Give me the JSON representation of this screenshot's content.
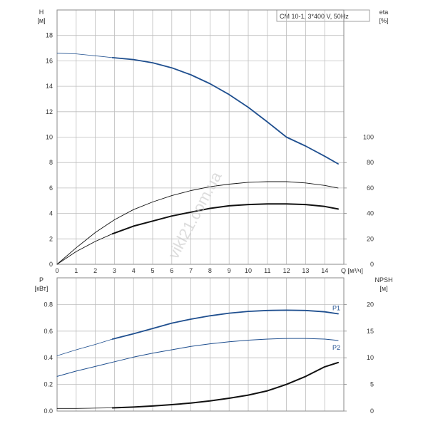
{
  "title_box": "CM 10-1, 3*400 V, 50Hz",
  "watermark": "vikl21.com.ua",
  "colors": {
    "blue": "#1f4f8f",
    "black": "#111111",
    "grid": "#bdbdbd"
  },
  "chart_data": [
    {
      "type": "line",
      "panel": "top",
      "x_tick_labels": [
        "0",
        "1",
        "2",
        "3",
        "4",
        "5",
        "6",
        "7",
        "8",
        "9",
        "10",
        "11",
        "12",
        "13",
        "14"
      ],
      "xlim": [
        0,
        15
      ],
      "x_unit_label": "Q [м³/ч]",
      "left_axis": {
        "label": "H",
        "unit": "[м]",
        "ylim": [
          0,
          20
        ],
        "tick_labels": [
          "0",
          "2",
          "4",
          "6",
          "8",
          "10",
          "12",
          "14",
          "16",
          "18"
        ]
      },
      "right_axis": {
        "label": "eta",
        "unit": "[%]",
        "ylim": [
          0,
          200
        ],
        "tick_labels": [
          "0",
          "20",
          "40",
          "60",
          "80",
          "100"
        ]
      },
      "grid": true,
      "series": [
        {
          "key": "H",
          "axis": "left",
          "color": "blue",
          "width": 1.8,
          "x": [
            2.9,
            4,
            5,
            6,
            7,
            8,
            9,
            10,
            11,
            12,
            13,
            14,
            14.7
          ],
          "y": [
            16.25,
            16.1,
            15.85,
            15.45,
            14.9,
            14.2,
            13.35,
            12.35,
            11.2,
            10.0,
            9.3,
            8.5,
            7.9
          ]
        },
        {
          "key": "H_ext",
          "axis": "left",
          "color": "blue",
          "width": 0.8,
          "x": [
            0,
            1,
            2,
            2.9
          ],
          "y": [
            16.6,
            16.55,
            16.4,
            16.25
          ]
        },
        {
          "key": "eta_upper",
          "axis": "right",
          "color": "black",
          "width": 0.9,
          "x": [
            0,
            1,
            2,
            3,
            4,
            5,
            6,
            7,
            8,
            9,
            10,
            11,
            12,
            13,
            14,
            14.7
          ],
          "y": [
            0,
            13,
            25,
            35,
            43,
            49,
            54,
            58,
            61,
            63,
            64.5,
            65,
            65,
            64,
            62,
            60
          ]
        },
        {
          "key": "eta_lower",
          "axis": "right",
          "color": "black",
          "width": 0.9,
          "x": [
            0,
            1,
            2,
            2.9
          ],
          "y": [
            0,
            10,
            18,
            24
          ]
        },
        {
          "key": "eta",
          "axis": "right",
          "color": "black",
          "width": 2.0,
          "x": [
            2.9,
            4,
            5,
            6,
            7,
            8,
            9,
            10,
            11,
            12,
            13,
            14,
            14.7
          ],
          "y": [
            24,
            30,
            34,
            38,
            41,
            44,
            46,
            47,
            47.5,
            47.5,
            47,
            45.5,
            43.5
          ]
        }
      ]
    },
    {
      "type": "line",
      "panel": "bottom",
      "xlim": [
        0,
        15
      ],
      "left_axis": {
        "label": "P",
        "unit": "[кВт]",
        "ylim": [
          0,
          1.0
        ],
        "tick_labels": [
          "0.0",
          "0.2",
          "0.4",
          "0.6",
          "0.8"
        ]
      },
      "right_axis": {
        "label": "NPSH",
        "unit": "[м]",
        "ylim": [
          0,
          25
        ],
        "tick_labels": [
          "0",
          "5",
          "10",
          "15",
          "20"
        ]
      },
      "grid": true,
      "series": [
        {
          "key": "P1",
          "name": "P1",
          "axis": "left",
          "color": "blue",
          "width": 1.8,
          "x": [
            2.9,
            4,
            5,
            6,
            7,
            8,
            9,
            10,
            11,
            12,
            13,
            14,
            14.7
          ],
          "y": [
            0.54,
            0.58,
            0.62,
            0.66,
            0.69,
            0.715,
            0.735,
            0.748,
            0.755,
            0.757,
            0.755,
            0.745,
            0.73
          ]
        },
        {
          "key": "P1_ext",
          "axis": "left",
          "color": "blue",
          "width": 0.8,
          "x": [
            0,
            1,
            2,
            2.9
          ],
          "y": [
            0.415,
            0.46,
            0.5,
            0.54
          ]
        },
        {
          "key": "P2",
          "name": "P2",
          "axis": "left",
          "color": "blue",
          "width": 1.0,
          "x": [
            0,
            1,
            2,
            3,
            4,
            5,
            6,
            7,
            8,
            9,
            10,
            11,
            12,
            13,
            14,
            14.7
          ],
          "y": [
            0.26,
            0.3,
            0.335,
            0.37,
            0.405,
            0.435,
            0.46,
            0.485,
            0.505,
            0.52,
            0.532,
            0.54,
            0.545,
            0.545,
            0.54,
            0.53
          ]
        },
        {
          "key": "NPSH",
          "axis": "right",
          "color": "black",
          "width": 2.0,
          "x": [
            2.9,
            4,
            5,
            6,
            7,
            8,
            9,
            10,
            11,
            12,
            13,
            14,
            14.7
          ],
          "y": [
            0.6,
            0.75,
            0.95,
            1.2,
            1.5,
            1.9,
            2.4,
            3.0,
            3.8,
            5.0,
            6.5,
            8.3,
            9.1
          ]
        },
        {
          "key": "NPSH_ext",
          "axis": "right",
          "color": "black",
          "width": 0.8,
          "x": [
            0,
            1,
            2,
            2.9
          ],
          "y": [
            0.5,
            0.5,
            0.55,
            0.6
          ]
        }
      ]
    }
  ]
}
